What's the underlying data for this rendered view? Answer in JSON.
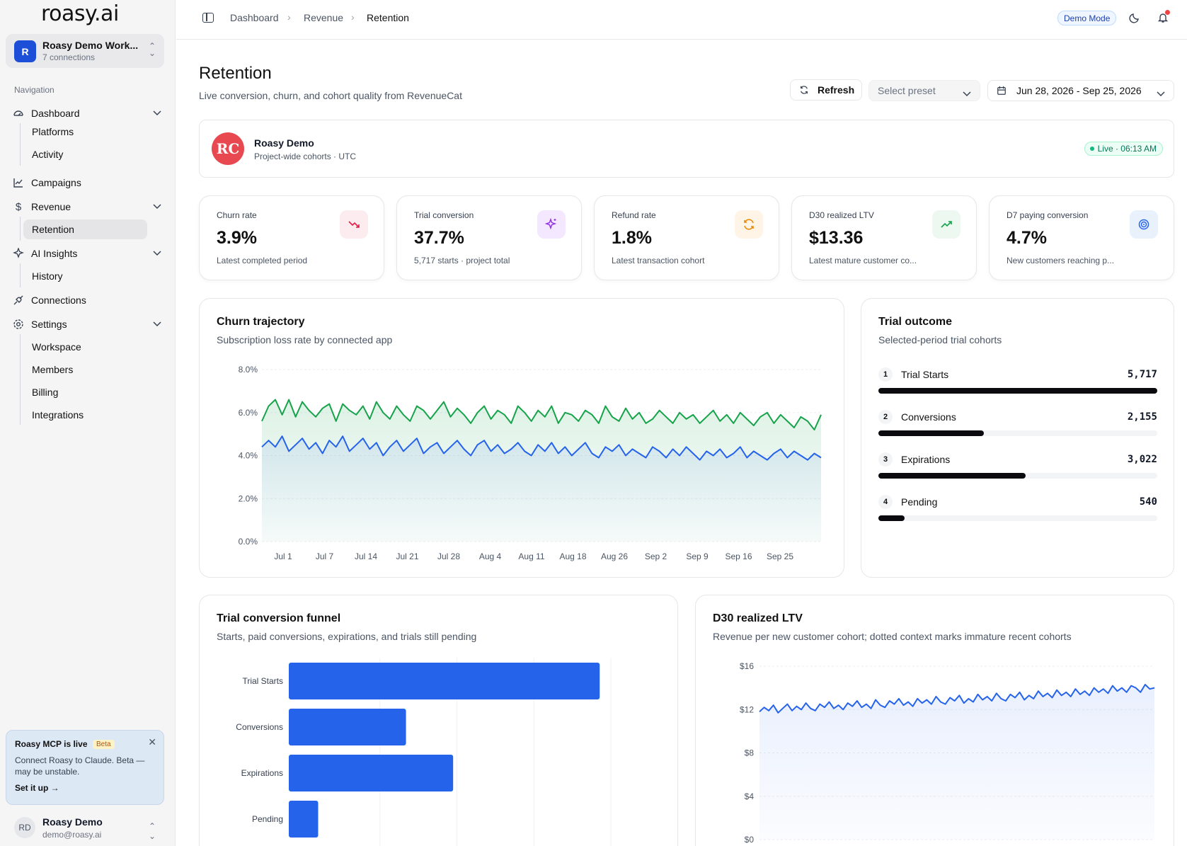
{
  "sidebar": {
    "logo": "roasy.ai",
    "workspace": {
      "initial": "R",
      "name": "Roasy Demo Work...",
      "sub": "7 connections"
    },
    "nav_label": "Navigation",
    "items": [
      {
        "label": "Dashboard",
        "icon": "gauge-icon"
      },
      {
        "label": "Campaigns",
        "icon": "chart-line-icon"
      },
      {
        "label": "Revenue",
        "icon": "dollar-icon"
      },
      {
        "label": "AI Insights",
        "icon": "sparkle-icon"
      },
      {
        "label": "Connections",
        "icon": "plug-icon"
      },
      {
        "label": "Settings",
        "icon": "gear-icon"
      }
    ],
    "dashboard_children": [
      "Platforms",
      "Activity"
    ],
    "revenue_children": [
      "Retention"
    ],
    "insights_children": [
      "History"
    ],
    "settings_children": [
      "Workspace",
      "Members",
      "Billing",
      "Integrations"
    ],
    "promo": {
      "title": "Roasy MCP is live",
      "badge": "Beta",
      "text": "Connect Roasy to Claude. Beta — may be unstable.",
      "link": "Set it up →"
    },
    "user": {
      "initials": "RD",
      "name": "Roasy Demo",
      "email": "demo@roasy.ai"
    }
  },
  "topbar": {
    "breadcrumbs": [
      "Dashboard",
      "Revenue",
      "Retention"
    ],
    "demo_badge": "Demo Mode"
  },
  "header": {
    "title": "Retention",
    "subtitle": "Live conversion, churn, and cohort quality from RevenueCat",
    "refresh": "Refresh",
    "preset_placeholder": "Select preset",
    "date_range": "Jun 28, 2026 - Sep 25, 2026"
  },
  "project": {
    "logo_text": "RC",
    "name": "Roasy Demo",
    "sub": "Project-wide cohorts · UTC",
    "live": "Live · 06:13 AM"
  },
  "kpis": [
    {
      "label": "Churn rate",
      "value": "3.9%",
      "sub": "Latest completed period",
      "icon": "trending-down-icon",
      "bg": "#fdecef",
      "color": "#e11d48"
    },
    {
      "label": "Trial conversion",
      "value": "37.7%",
      "sub": "5,717 starts · project total",
      "icon": "sparkles-icon",
      "bg": "#f3e8ff",
      "color": "#9333ea"
    },
    {
      "label": "Refund rate",
      "value": "1.8%",
      "sub": "Latest transaction cohort",
      "icon": "refresh-icon",
      "bg": "#fff4e5",
      "color": "#ea8a0c"
    },
    {
      "label": "D30 realized LTV",
      "value": "$13.36",
      "sub": "Latest mature customer co...",
      "icon": "trending-up-icon",
      "bg": "#ecf8f0",
      "color": "#16a34a"
    },
    {
      "label": "D7 paying conversion",
      "value": "4.7%",
      "sub": "New customers reaching p...",
      "icon": "target-icon",
      "bg": "#e9f1fd",
      "color": "#2563eb"
    }
  ],
  "churn_card": {
    "title": "Churn trajectory",
    "subtitle": "Subscription loss rate by connected app"
  },
  "outcome_card": {
    "title": "Trial outcome",
    "subtitle": "Selected-period trial cohorts",
    "rows": [
      {
        "n": "1",
        "label": "Trial Starts",
        "value": "5,717",
        "fraction": 1.0
      },
      {
        "n": "2",
        "label": "Conversions",
        "value": "2,155",
        "fraction": 0.377
      },
      {
        "n": "3",
        "label": "Expirations",
        "value": "3,022",
        "fraction": 0.529
      },
      {
        "n": "4",
        "label": "Pending",
        "value": "540",
        "fraction": 0.094
      }
    ]
  },
  "funnel_card": {
    "title": "Trial conversion funnel",
    "subtitle": "Starts, paid conversions, expirations, and trials still pending"
  },
  "ltv_card": {
    "title": "D30 realized LTV",
    "subtitle": "Revenue per new customer cohort; dotted context marks immature recent cohorts"
  },
  "chart_data": [
    {
      "type": "area",
      "yticks": [
        "8.0%",
        "6.0%",
        "4.0%",
        "2.0%",
        "0.0%"
      ],
      "ylim": [
        0,
        8
      ],
      "x_ticks": [
        "Jul 1",
        "Jul 7",
        "Jul 14",
        "Jul 21",
        "Jul 28",
        "Aug 4",
        "Aug 11",
        "Aug 18",
        "Aug 26",
        "Sep 2",
        "Sep 9",
        "Sep 16",
        "Sep 25"
      ],
      "grid": true,
      "series": [
        {
          "color": "#16a34a",
          "values": [
            5.6,
            6.3,
            6.6,
            5.9,
            6.6,
            5.8,
            6.5,
            6.1,
            5.8,
            6.2,
            6.4,
            5.6,
            6.4,
            6.1,
            5.9,
            6.3,
            5.7,
            6.5,
            6.0,
            5.7,
            6.3,
            5.9,
            5.6,
            6.3,
            6.1,
            5.7,
            6.1,
            6.5,
            5.8,
            6.2,
            5.9,
            5.5,
            6.0,
            6.3,
            5.7,
            6.1,
            5.9,
            5.5,
            6.3,
            6.0,
            5.6,
            6.1,
            5.8,
            6.3,
            5.5,
            6.0,
            5.9,
            5.6,
            6.1,
            5.9,
            5.5,
            6.3,
            5.8,
            5.6,
            6.2,
            5.7,
            6.0,
            5.5,
            5.7,
            6.1,
            5.8,
            5.5,
            6.0,
            5.7,
            5.9,
            5.5,
            5.8,
            6.1,
            5.6,
            5.9,
            5.5,
            6.0,
            5.7,
            5.4,
            5.8,
            6.0,
            5.5,
            5.9,
            5.6,
            5.3,
            5.8,
            5.6,
            5.2,
            5.9
          ]
        },
        {
          "color": "#2563eb",
          "values": [
            4.4,
            4.7,
            4.4,
            4.9,
            4.2,
            4.5,
            4.8,
            4.3,
            4.6,
            4.1,
            4.7,
            4.4,
            4.9,
            4.2,
            4.5,
            4.8,
            4.3,
            4.6,
            4.0,
            4.4,
            4.7,
            4.2,
            4.5,
            4.8,
            4.1,
            4.4,
            4.6,
            4.1,
            4.4,
            4.7,
            4.3,
            4.0,
            4.5,
            4.7,
            4.2,
            4.5,
            4.1,
            4.3,
            4.6,
            4.2,
            4.0,
            4.5,
            4.2,
            4.6,
            4.1,
            4.4,
            4.0,
            4.3,
            4.6,
            4.1,
            3.9,
            4.4,
            4.2,
            4.5,
            4.0,
            4.3,
            4.1,
            3.9,
            4.4,
            4.2,
            3.9,
            4.3,
            4.0,
            4.4,
            4.1,
            3.8,
            4.2,
            4.0,
            4.3,
            3.9,
            4.1,
            4.4,
            3.9,
            4.2,
            4.0,
            3.8,
            4.1,
            4.3,
            3.9,
            4.2,
            4.0,
            3.8,
            4.1,
            3.9
          ]
        }
      ]
    },
    {
      "type": "bar",
      "orientation": "horizontal",
      "categories": [
        "Trial Starts",
        "Conversions",
        "Expirations",
        "Pending"
      ],
      "values": [
        5717,
        2155,
        3022,
        540
      ],
      "xlim": [
        0,
        6000
      ],
      "color": "#2563eb"
    },
    {
      "type": "area",
      "yticks": [
        "$16",
        "$12",
        "$8",
        "$4",
        "$0"
      ],
      "ylim": [
        0,
        16
      ],
      "series": [
        {
          "color": "#2563eb",
          "values": [
            11.8,
            12.2,
            11.9,
            12.4,
            11.7,
            12.1,
            12.5,
            11.9,
            12.3,
            12.0,
            12.6,
            12.1,
            11.9,
            12.5,
            12.2,
            12.7,
            12.1,
            12.4,
            12.0,
            12.6,
            12.3,
            12.8,
            12.2,
            12.5,
            12.1,
            12.9,
            12.4,
            12.2,
            12.8,
            12.5,
            13.0,
            12.4,
            12.7,
            12.3,
            13.0,
            12.6,
            12.9,
            12.5,
            13.2,
            12.7,
            12.5,
            13.1,
            12.8,
            13.3,
            12.6,
            13.0,
            12.7,
            13.4,
            12.9,
            13.2,
            12.8,
            13.5,
            13.0,
            12.8,
            13.4,
            13.1,
            13.6,
            12.9,
            13.3,
            13.0,
            13.7,
            13.2,
            13.5,
            13.1,
            13.8,
            13.3,
            13.6,
            13.2,
            13.9,
            13.4,
            13.7,
            13.3,
            14.0,
            13.6,
            13.9,
            13.5,
            14.2,
            13.7,
            14.0,
            13.6,
            14.2,
            14.0,
            13.6,
            14.3,
            13.9,
            14.0
          ]
        }
      ]
    }
  ]
}
